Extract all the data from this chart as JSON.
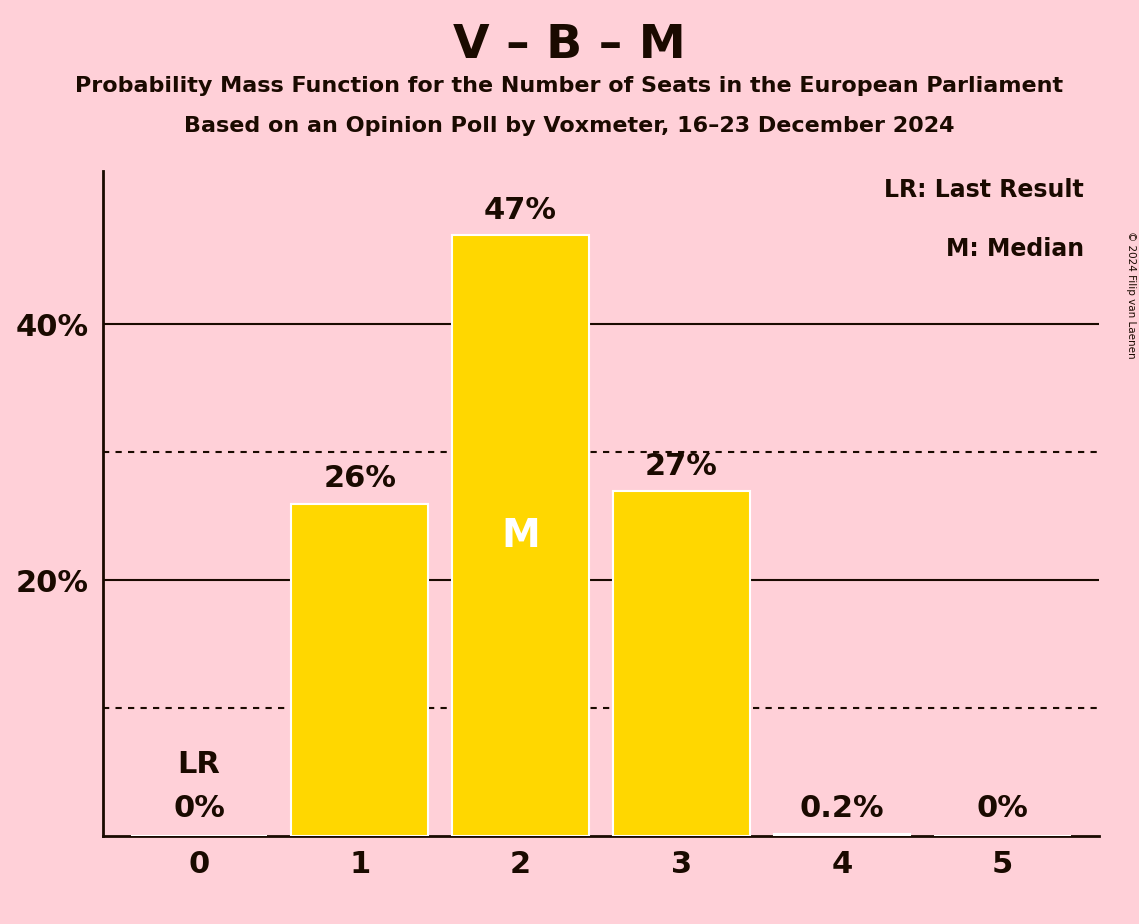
{
  "title": "V – B – M",
  "subtitle1": "Probability Mass Function for the Number of Seats in the European Parliament",
  "subtitle2": "Based on an Opinion Poll by Voxmeter, 16–23 December 2024",
  "copyright": "© 2024 Filip van Laenen",
  "categories": [
    0,
    1,
    2,
    3,
    4,
    5
  ],
  "values": [
    0.0,
    26.0,
    47.0,
    27.0,
    0.2,
    0.0
  ],
  "bar_color": "#FFD700",
  "bar_edgecolor": "white",
  "background_color": "#FFD0D8",
  "text_color": "#1a0a00",
  "median_bar": 2,
  "median_label": "M",
  "lr_bar": 0,
  "lr_label": "LR",
  "legend_text1": "LR: Last Result",
  "legend_text2": "M: Median",
  "ylabel_ticks": [
    20,
    40
  ],
  "dotted_lines": [
    10,
    30
  ],
  "ylim": [
    0,
    52
  ],
  "bar_width": 0.85,
  "bar_labels": [
    "0%",
    "26%",
    "47%",
    "27%",
    "0.2%",
    "0%"
  ],
  "show_lr": [
    true,
    false,
    false,
    false,
    false,
    false
  ],
  "show_above": [
    false,
    true,
    true,
    true,
    true,
    true
  ]
}
